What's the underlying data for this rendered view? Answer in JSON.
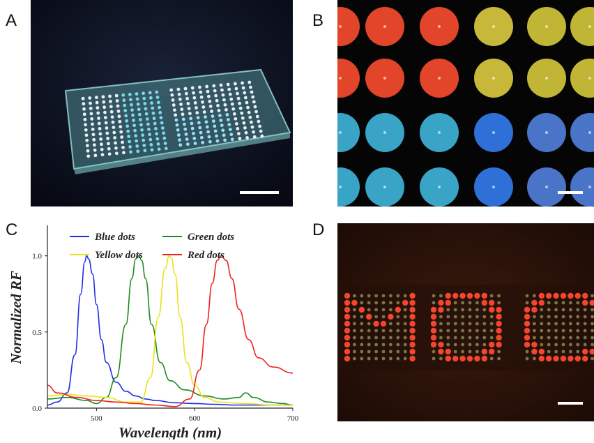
{
  "panels": {
    "a": {
      "letter": "A",
      "content": "photo of glass slide with two dot arrays"
    },
    "b": {
      "letter": "B",
      "content": "microscope photo of colored dots"
    },
    "c": {
      "letter": "C"
    },
    "d": {
      "letter": "D",
      "content": "photo of dot array spelling letters"
    }
  },
  "colors": {
    "blue": "#1f2fe6",
    "green": "#1f8a1f",
    "yellow": "#e9e21a",
    "red": "#ee2222"
  },
  "chart_data": {
    "type": "line",
    "title": "",
    "xlabel": "Wavelength (nm)",
    "ylabel": "Normalized RF",
    "xlim": [
      450,
      700
    ],
    "ylim": [
      0,
      1.2
    ],
    "x_ticks": [
      "500",
      "600",
      "700"
    ],
    "y_ticks": [
      "0.0",
      "0.5",
      "1.0"
    ],
    "grid": false,
    "legend": "top, inside plot, two columns",
    "series": [
      {
        "name": "Blue dots",
        "color": "#1f2fe6",
        "x": [
          450,
          460,
          470,
          478,
          484,
          488,
          490,
          492,
          496,
          500,
          505,
          510,
          520,
          530,
          540,
          550,
          560,
          580,
          600,
          620,
          640,
          660,
          680,
          700
        ],
        "y": [
          0.02,
          0.04,
          0.1,
          0.35,
          0.75,
          0.96,
          1.0,
          0.98,
          0.88,
          0.68,
          0.45,
          0.3,
          0.17,
          0.11,
          0.08,
          0.06,
          0.05,
          0.035,
          0.03,
          0.025,
          0.02,
          0.02,
          0.02,
          0.02
        ]
      },
      {
        "name": "Green dots",
        "color": "#1f8a1f",
        "x": [
          450,
          470,
          490,
          500,
          510,
          520,
          530,
          536,
          540,
          543,
          546,
          550,
          556,
          565,
          575,
          590,
          610,
          630,
          645,
          652,
          660,
          675,
          690,
          700
        ],
        "y": [
          0.06,
          0.07,
          0.05,
          0.03,
          0.07,
          0.2,
          0.55,
          0.85,
          0.98,
          1.0,
          0.97,
          0.85,
          0.55,
          0.3,
          0.18,
          0.12,
          0.08,
          0.06,
          0.07,
          0.1,
          0.07,
          0.04,
          0.03,
          0.02
        ]
      },
      {
        "name": "Yellow dots",
        "color": "#e9e21a",
        "x": [
          450,
          470,
          490,
          510,
          530,
          545,
          555,
          563,
          570,
          574,
          576,
          580,
          585,
          592,
          600,
          610,
          625,
          650,
          680,
          700
        ],
        "y": [
          0.08,
          0.09,
          0.08,
          0.07,
          0.04,
          0.04,
          0.2,
          0.6,
          0.92,
          1.0,
          0.99,
          0.88,
          0.6,
          0.3,
          0.15,
          0.07,
          0.04,
          0.03,
          0.02,
          0.02
        ]
      },
      {
        "name": "Red dots",
        "color": "#ee2222",
        "x": [
          450,
          460,
          480,
          500,
          520,
          540,
          560,
          580,
          595,
          605,
          612,
          618,
          623,
          627,
          632,
          638,
          645,
          655,
          665,
          680,
          700
        ],
        "y": [
          0.15,
          0.1,
          0.07,
          0.05,
          0.04,
          0.03,
          0.02,
          0.01,
          0.06,
          0.25,
          0.55,
          0.82,
          0.97,
          1.0,
          0.97,
          0.85,
          0.65,
          0.45,
          0.33,
          0.27,
          0.23
        ]
      }
    ]
  }
}
